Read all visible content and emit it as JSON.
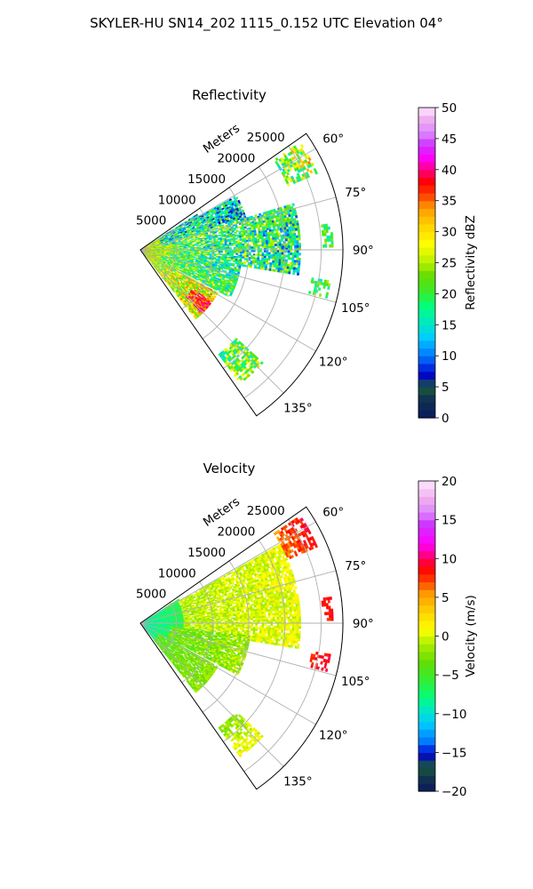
{
  "suptitle": "SKYLER-HU  SN14_202  1115_0.152 UTC Elevation 04°",
  "chart_data": [
    {
      "type": "heatmap",
      "projection": "polar-sector",
      "title": "Reflectivity",
      "range_axis_label": "Meters",
      "range_ticks": [
        5000,
        10000,
        15000,
        20000,
        25000
      ],
      "range_tick_labels": [
        "5000",
        "10000",
        "15000",
        "20000",
        "25000"
      ],
      "range_max": 28000,
      "azimuth_ticks": [
        60,
        75,
        90,
        105,
        120,
        135
      ],
      "azimuth_tick_labels": [
        "60°",
        "75°",
        "90°",
        "105°",
        "120°",
        "135°"
      ],
      "azimuth_range": [
        55,
        145
      ],
      "grid": true,
      "colorbar": {
        "label": "Reflectivity dBZ",
        "range": [
          0,
          50
        ],
        "ticks": [
          0,
          5,
          10,
          15,
          20,
          25,
          30,
          35,
          40,
          45,
          50
        ],
        "tick_labels": [
          "0",
          "5",
          "10",
          "15",
          "20",
          "25",
          "30",
          "35",
          "40",
          "45",
          "50"
        ],
        "stops": [
          [
            0,
            "#0a1a5c"
          ],
          [
            0.06,
            "#103050"
          ],
          [
            0.1,
            "#1a5a3a"
          ],
          [
            0.14,
            "#0000cc"
          ],
          [
            0.2,
            "#0078ff"
          ],
          [
            0.26,
            "#00ccff"
          ],
          [
            0.3,
            "#00e6c8"
          ],
          [
            0.36,
            "#00ff80"
          ],
          [
            0.4,
            "#33ee33"
          ],
          [
            0.46,
            "#66dd00"
          ],
          [
            0.5,
            "#b4f000"
          ],
          [
            0.56,
            "#ffff00"
          ],
          [
            0.62,
            "#ffd200"
          ],
          [
            0.68,
            "#ff9600"
          ],
          [
            0.72,
            "#ff3c00"
          ],
          [
            0.76,
            "#ff0000"
          ],
          [
            0.8,
            "#ff0080"
          ],
          [
            0.84,
            "#ff00ff"
          ],
          [
            0.88,
            "#cc33ff"
          ],
          [
            0.92,
            "#dd88ff"
          ],
          [
            0.96,
            "#eeaaee"
          ],
          [
            1,
            "#ffe6ff"
          ]
        ]
      },
      "echo_regions": [
        {
          "az": [
            57,
            140
          ],
          "r": [
            0,
            5500
          ],
          "v0": 27,
          "v1": 24,
          "jit": 0.15,
          "dens": 1
        },
        {
          "az": [
            57,
            72
          ],
          "r": [
            3000,
            9000
          ],
          "v0": 16,
          "v1": 13,
          "jit": 0.18,
          "dens": 0.95
        },
        {
          "az": [
            60,
            80
          ],
          "r": [
            3000,
            15000
          ],
          "v0": 17,
          "v1": 15,
          "jit": 0.18,
          "dens": 0.88
        },
        {
          "az": [
            73,
            99
          ],
          "r": [
            5000,
            22000
          ],
          "v0": 20,
          "v1": 17,
          "jit": 0.18,
          "dens": 0.85
        },
        {
          "az": [
            96,
            106
          ],
          "r": [
            4000,
            14000
          ],
          "v0": 20,
          "v1": 17,
          "jit": 0.15,
          "dens": 0.85
        },
        {
          "az": [
            104,
            118
          ],
          "r": [
            3000,
            14000
          ],
          "v0": 21,
          "v1": 19,
          "jit": 0.15,
          "dens": 0.88
        },
        {
          "az": [
            119,
            141
          ],
          "r": [
            3000,
            12000
          ],
          "v0": 25,
          "v1": 28,
          "jit": 0.17,
          "dens": 0.92
        },
        {
          "az": [
            126,
            136
          ],
          "r": [
            9000,
            12000
          ],
          "v0": 35,
          "v1": 38,
          "jit": 0.1,
          "dens": 0.95
        },
        {
          "az": [
            56,
            66
          ],
          "r": [
            22000,
            26500
          ],
          "v0": 20,
          "v1": 27,
          "jit": 0.18,
          "dens": 0.65
        },
        {
          "az": [
            132,
            143
          ],
          "r": [
            18000,
            23000
          ],
          "v0": 20,
          "v1": 24,
          "jit": 0.15,
          "dens": 0.7
        },
        {
          "az": [
            82,
            89
          ],
          "r": [
            25000,
            26500
          ],
          "v0": 20,
          "v1": 20,
          "jit": 0.1,
          "dens": 0.5
        },
        {
          "az": [
            99,
            104
          ],
          "r": [
            24000,
            26500
          ],
          "v0": 20,
          "v1": 20,
          "jit": 0.1,
          "dens": 0.5
        }
      ]
    },
    {
      "type": "heatmap",
      "projection": "polar-sector",
      "title": "Velocity",
      "range_axis_label": "Meters",
      "range_ticks": [
        5000,
        10000,
        15000,
        20000,
        25000
      ],
      "range_tick_labels": [
        "5000",
        "10000",
        "15000",
        "20000",
        "25000"
      ],
      "range_max": 28000,
      "azimuth_ticks": [
        60,
        75,
        90,
        105,
        120,
        135
      ],
      "azimuth_tick_labels": [
        "60°",
        "75°",
        "90°",
        "105°",
        "120°",
        "135°"
      ],
      "azimuth_range": [
        55,
        145
      ],
      "grid": true,
      "colorbar": {
        "label": "Velocity (m/s)",
        "range": [
          -20,
          20
        ],
        "ticks": [
          -20,
          -15,
          -10,
          -5,
          0,
          5,
          10,
          15,
          20
        ],
        "tick_labels": [
          "−20",
          "−15",
          "−10",
          "−5",
          "0",
          "5",
          "10",
          "15",
          "20"
        ],
        "stops": [
          [
            0,
            "#0a1a5c"
          ],
          [
            0.04,
            "#103050"
          ],
          [
            0.08,
            "#1a5a3a"
          ],
          [
            0.12,
            "#0000cc"
          ],
          [
            0.16,
            "#0078ff"
          ],
          [
            0.22,
            "#00ccff"
          ],
          [
            0.26,
            "#00e6c8"
          ],
          [
            0.3,
            "#00ff80"
          ],
          [
            0.36,
            "#33ee33"
          ],
          [
            0.42,
            "#66dd00"
          ],
          [
            0.48,
            "#b4f000"
          ],
          [
            0.52,
            "#ffff00"
          ],
          [
            0.58,
            "#ffd200"
          ],
          [
            0.64,
            "#ff9600"
          ],
          [
            0.68,
            "#ff3c00"
          ],
          [
            0.72,
            "#ff0000"
          ],
          [
            0.76,
            "#ff0080"
          ],
          [
            0.8,
            "#ff00ff"
          ],
          [
            0.86,
            "#cc33ff"
          ],
          [
            0.9,
            "#dd88ff"
          ],
          [
            0.94,
            "#eeaaee"
          ],
          [
            1,
            "#ffe6ff"
          ]
        ]
      },
      "echo_regions": [
        {
          "az": [
            57,
            140
          ],
          "r": [
            0,
            6000
          ],
          "v0": -9,
          "v1": -6,
          "jit": 0.05,
          "dens": 1
        },
        {
          "az": [
            60,
            99
          ],
          "r": [
            6000,
            22000
          ],
          "v0": -1,
          "v1": 0.5,
          "jit": 0.04,
          "dens": 0.85
        },
        {
          "az": [
            96,
            118
          ],
          "r": [
            4000,
            15000
          ],
          "v0": -3.5,
          "v1": -1.5,
          "jit": 0.05,
          "dens": 0.88
        },
        {
          "az": [
            119,
            141
          ],
          "r": [
            3000,
            12000
          ],
          "v0": -4,
          "v1": -2,
          "jit": 0.04,
          "dens": 0.9
        },
        {
          "az": [
            56,
            66
          ],
          "r": [
            22000,
            26500
          ],
          "v0": 6,
          "v1": 9,
          "jit": 0.04,
          "dens": 0.65
        },
        {
          "az": [
            132,
            143
          ],
          "r": [
            18000,
            23000
          ],
          "v0": -2,
          "v1": 1,
          "jit": 0.04,
          "dens": 0.7
        },
        {
          "az": [
            82,
            89
          ],
          "r": [
            25000,
            26500
          ],
          "v0": 8,
          "v1": 9,
          "jit": 0.03,
          "dens": 0.5
        },
        {
          "az": [
            99,
            104
          ],
          "r": [
            24000,
            26500
          ],
          "v0": 8,
          "v1": 9,
          "jit": 0.03,
          "dens": 0.5
        }
      ]
    }
  ]
}
